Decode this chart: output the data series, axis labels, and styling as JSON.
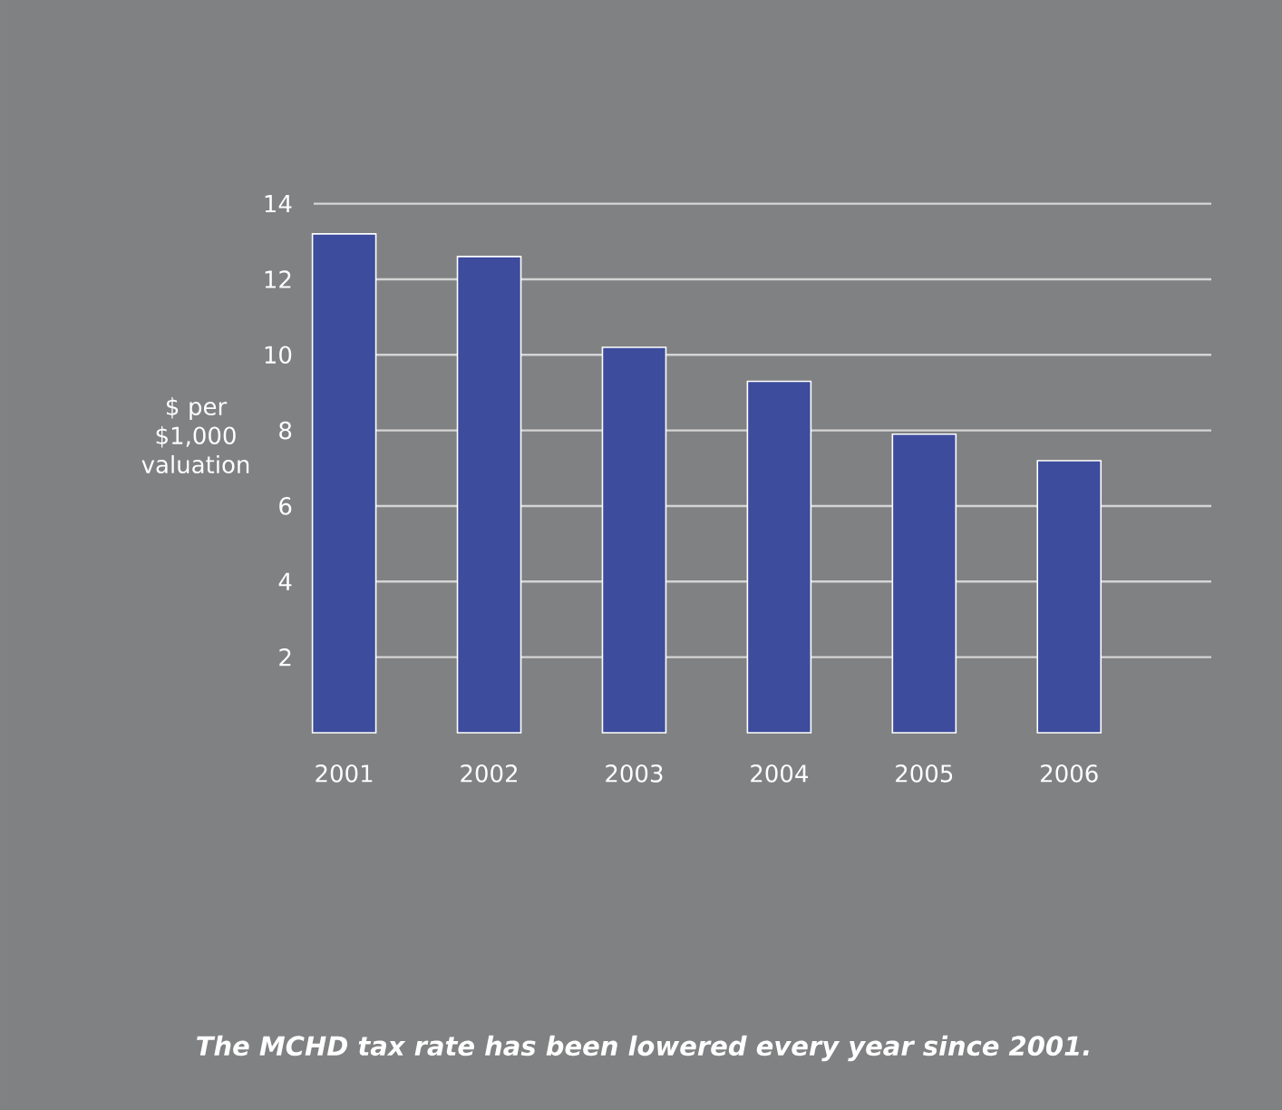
{
  "chart_data": {
    "type": "bar",
    "ylabel": "$ per $1,000 valuation",
    "categories": [
      "2001",
      "2002",
      "2003",
      "2004",
      "2005",
      "2006"
    ],
    "values": [
      13.2,
      12.6,
      10.2,
      9.3,
      7.9,
      7.2
    ],
    "color": "#3d4c9c",
    "ylim": [
      0,
      14
    ],
    "yticks": [
      2,
      4,
      6,
      8,
      10,
      12,
      14
    ],
    "grid": "y",
    "annotations": [
      "*The MCHD tax rate has been lowered every year since 2001.*"
    ]
  }
}
